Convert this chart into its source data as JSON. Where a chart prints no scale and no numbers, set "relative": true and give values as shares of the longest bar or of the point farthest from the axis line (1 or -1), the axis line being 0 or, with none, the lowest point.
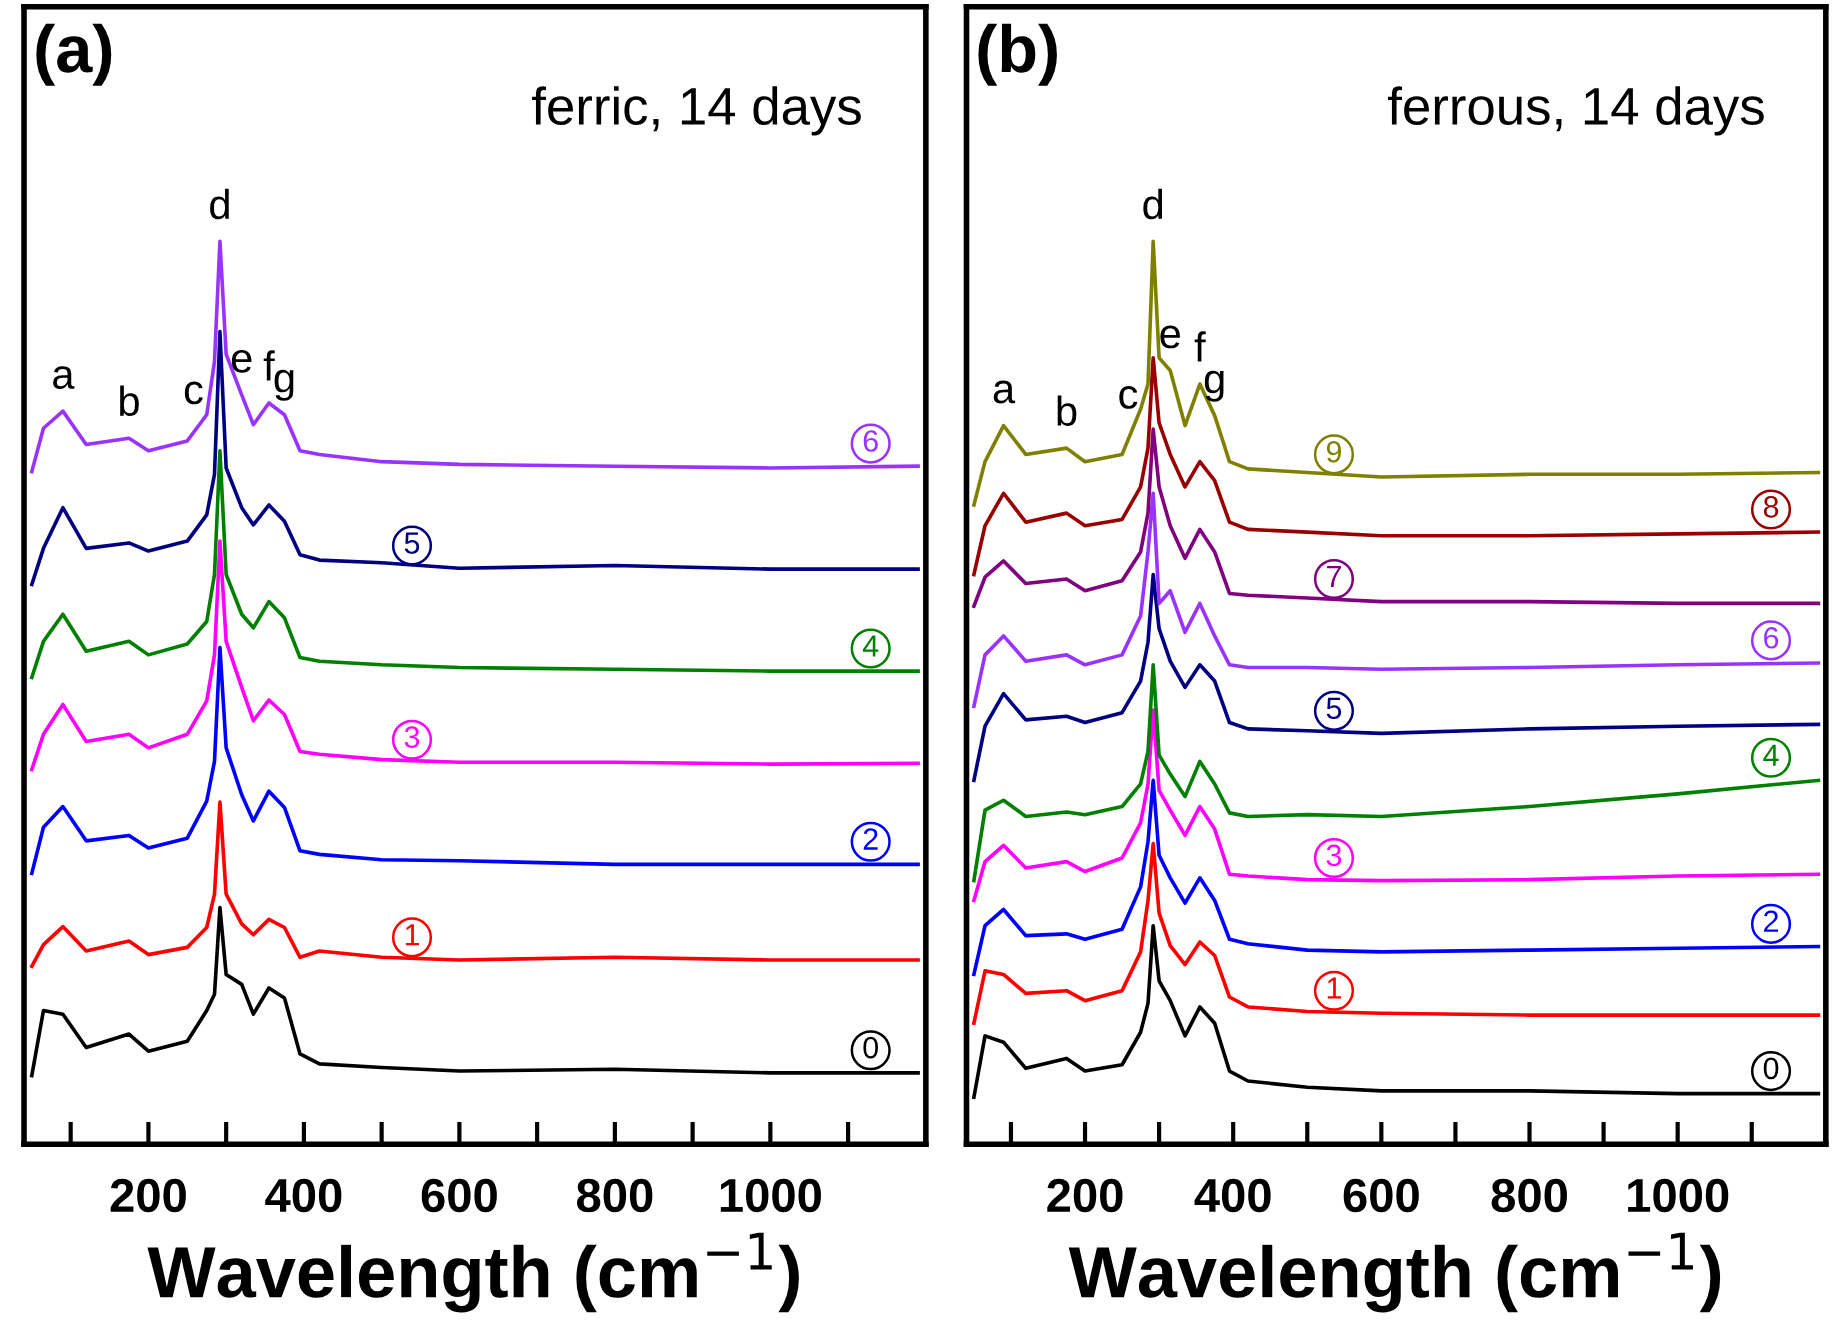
{
  "chart_data": [
    {
      "type": "line",
      "title": "(a)",
      "subtitle": "ferric, 14 days",
      "xlabel": "Wavelength (cm$^{−1}$)",
      "relative": true,
      "legend": false,
      "grid": false,
      "x": [
        50,
        65,
        90,
        120,
        175,
        200,
        250,
        275,
        285,
        292,
        300,
        320,
        335,
        355,
        375,
        395,
        420,
        500,
        600,
        800,
        1000,
        1190
      ],
      "xlim": [
        40,
        1200
      ],
      "xticks": [
        {
          "value": 100,
          "label": null
        },
        200,
        {
          "value": 300,
          "label": null
        },
        400,
        {
          "value": 500,
          "label": null
        },
        600,
        {
          "value": 700,
          "label": null
        },
        800,
        {
          "value": 900,
          "label": null
        },
        1000,
        {
          "value": 1100,
          "label": null
        }
      ],
      "series": [
        {
          "name": "0",
          "color": "#000000",
          "values": [
            0.076,
            0.148,
            0.144,
            0.107,
            0.122,
            0.103,
            0.114,
            0.148,
            0.166,
            0.262,
            0.188,
            0.177,
            0.144,
            0.173,
            0.162,
            0.1,
            0.089,
            0.085,
            0.081,
            0.083,
            0.079,
            0.079
          ]
        },
        {
          "name": "1",
          "color": "#ff0000",
          "values": [
            0.197,
            0.221,
            0.241,
            0.214,
            0.225,
            0.21,
            0.218,
            0.24,
            0.277,
            0.379,
            0.277,
            0.244,
            0.232,
            0.249,
            0.24,
            0.207,
            0.214,
            0.207,
            0.204,
            0.207,
            0.204,
            0.204
          ]
        },
        {
          "name": "2",
          "color": "#0000ff",
          "values": [
            0.3,
            0.351,
            0.374,
            0.336,
            0.342,
            0.328,
            0.339,
            0.38,
            0.424,
            0.55,
            0.439,
            0.387,
            0.358,
            0.391,
            0.373,
            0.325,
            0.321,
            0.315,
            0.314,
            0.31,
            0.31,
            0.31
          ]
        },
        {
          "name": "3",
          "color": "#ff00ff",
          "values": [
            0.415,
            0.454,
            0.487,
            0.446,
            0.454,
            0.439,
            0.454,
            0.491,
            0.542,
            0.668,
            0.557,
            0.506,
            0.469,
            0.492,
            0.476,
            0.435,
            0.432,
            0.426,
            0.423,
            0.423,
            0.421,
            0.422
          ]
        },
        {
          "name": "4",
          "color": "#008000",
          "values": [
            0.517,
            0.557,
            0.587,
            0.546,
            0.557,
            0.542,
            0.554,
            0.579,
            0.631,
            0.768,
            0.631,
            0.587,
            0.572,
            0.601,
            0.583,
            0.539,
            0.535,
            0.531,
            0.528,
            0.526,
            0.524,
            0.524
          ]
        },
        {
          "name": "5",
          "color": "#000080",
          "values": [
            0.62,
            0.66,
            0.705,
            0.66,
            0.666,
            0.657,
            0.668,
            0.697,
            0.742,
            0.9,
            0.749,
            0.705,
            0.686,
            0.708,
            0.69,
            0.653,
            0.647,
            0.644,
            0.638,
            0.641,
            0.637,
            0.637
          ]
        },
        {
          "name": "6",
          "color": "#9933ff",
          "values": [
            0.745,
            0.793,
            0.812,
            0.775,
            0.782,
            0.768,
            0.779,
            0.808,
            0.867,
            1,
            0.875,
            0.83,
            0.797,
            0.821,
            0.808,
            0.768,
            0.764,
            0.756,
            0.753,
            0.751,
            0.749,
            0.751
          ]
        }
      ],
      "annotations": [
        {
          "text": "a",
          "x": 90,
          "y": 0.812
        },
        {
          "text": "b",
          "x": 175,
          "y": 0.782
        },
        {
          "text": "c",
          "x": 258,
          "y": 0.795
        },
        {
          "text": "d",
          "x": 292,
          "y": 1
        },
        {
          "text": "e",
          "x": 320,
          "y": 0.83
        },
        {
          "text": "f",
          "x": 355,
          "y": 0.821
        },
        {
          "text": "g",
          "x": 375,
          "y": 0.808
        }
      ]
    },
    {
      "type": "line",
      "title": "(b)",
      "subtitle": "ferrous, 14 days",
      "xlabel": "Wavelength (cm$^{−1}$)",
      "relative": true,
      "legend": false,
      "grid": false,
      "x": [
        50,
        65,
        90,
        120,
        175,
        200,
        250,
        275,
        285,
        292,
        300,
        315,
        335,
        355,
        375,
        395,
        420,
        500,
        600,
        800,
        1000,
        1190
      ],
      "xlim": [
        40,
        1200
      ],
      "xticks": [
        {
          "value": 100,
          "label": null
        },
        200,
        {
          "value": 300,
          "label": null
        },
        400,
        {
          "value": 500,
          "label": null
        },
        600,
        {
          "value": 700,
          "label": null
        },
        800,
        {
          "value": 900,
          "label": null
        },
        1000,
        {
          "value": 1100,
          "label": null
        }
      ],
      "series": [
        {
          "name": "0",
          "color": "#000000",
          "values": [
            0.052,
            0.12,
            0.113,
            0.084,
            0.095,
            0.081,
            0.088,
            0.124,
            0.156,
            0.242,
            0.181,
            0.159,
            0.12,
            0.152,
            0.134,
            0.081,
            0.07,
            0.063,
            0.059,
            0.059,
            0.056,
            0.056
          ]
        },
        {
          "name": "1",
          "color": "#ff0000",
          "values": [
            0.134,
            0.192,
            0.188,
            0.167,
            0.17,
            0.159,
            0.17,
            0.213,
            0.27,
            0.333,
            0.256,
            0.22,
            0.199,
            0.224,
            0.209,
            0.163,
            0.152,
            0.147,
            0.145,
            0.143,
            0.143,
            0.143
          ]
        },
        {
          "name": "2",
          "color": "#0000ff",
          "values": [
            0.188,
            0.242,
            0.26,
            0.231,
            0.233,
            0.227,
            0.238,
            0.285,
            0.335,
            0.403,
            0.32,
            0.295,
            0.267,
            0.295,
            0.27,
            0.227,
            0.222,
            0.215,
            0.213,
            0.215,
            0.217,
            0.219
          ]
        },
        {
          "name": "3",
          "color": "#ff00ff",
          "values": [
            0.27,
            0.313,
            0.331,
            0.306,
            0.313,
            0.302,
            0.317,
            0.356,
            0.399,
            0.481,
            0.392,
            0.37,
            0.342,
            0.374,
            0.349,
            0.299,
            0.297,
            0.293,
            0.292,
            0.293,
            0.297,
            0.299
          ]
        },
        {
          "name": "4",
          "color": "#008000",
          "values": [
            0.292,
            0.37,
            0.381,
            0.363,
            0.368,
            0.365,
            0.374,
            0.399,
            0.435,
            0.531,
            0.431,
            0.41,
            0.385,
            0.424,
            0.399,
            0.367,
            0.363,
            0.365,
            0.363,
            0.374,
            0.388,
            0.403
          ]
        },
        {
          "name": "5",
          "color": "#000080",
          "values": [
            0.403,
            0.463,
            0.499,
            0.47,
            0.474,
            0.467,
            0.478,
            0.513,
            0.556,
            0.631,
            0.571,
            0.535,
            0.506,
            0.531,
            0.513,
            0.467,
            0.46,
            0.458,
            0.455,
            0.46,
            0.463,
            0.465
          ]
        },
        {
          "name": "6",
          "color": "#9933ff",
          "values": [
            0.485,
            0.542,
            0.563,
            0.535,
            0.542,
            0.531,
            0.542,
            0.585,
            0.656,
            0.721,
            0.599,
            0.613,
            0.567,
            0.599,
            0.563,
            0.531,
            0.528,
            0.528,
            0.526,
            0.528,
            0.531,
            0.533
          ]
        },
        {
          "name": "7",
          "color": "#800080",
          "values": [
            0.596,
            0.628,
            0.646,
            0.621,
            0.626,
            0.613,
            0.624,
            0.656,
            0.699,
            0.792,
            0.728,
            0.685,
            0.649,
            0.681,
            0.656,
            0.61,
            0.608,
            0.605,
            0.601,
            0.601,
            0.599,
            0.599
          ]
        },
        {
          "name": "8",
          "color": "#990000",
          "values": [
            0.631,
            0.685,
            0.721,
            0.689,
            0.699,
            0.685,
            0.692,
            0.728,
            0.771,
            0.871,
            0.799,
            0.764,
            0.728,
            0.756,
            0.735,
            0.689,
            0.681,
            0.678,
            0.674,
            0.674,
            0.676,
            0.678
          ]
        },
        {
          "name": "9",
          "color": "#808000",
          "values": [
            0.708,
            0.756,
            0.796,
            0.764,
            0.771,
            0.756,
            0.764,
            0.814,
            0.842,
            1,
            0.871,
            0.857,
            0.796,
            0.842,
            0.807,
            0.756,
            0.748,
            0.744,
            0.739,
            0.742,
            0.742,
            0.744
          ]
        }
      ],
      "annotations": [
        {
          "text": "a",
          "x": 90,
          "y": 0.796
        },
        {
          "text": "b",
          "x": 175,
          "y": 0.771
        },
        {
          "text": "c",
          "x": 258,
          "y": 0.79
        },
        {
          "text": "d",
          "x": 292,
          "y": 1
        },
        {
          "text": "e",
          "x": 315,
          "y": 0.857
        },
        {
          "text": "f",
          "x": 355,
          "y": 0.842
        },
        {
          "text": "g",
          "x": 375,
          "y": 0.807
        }
      ]
    }
  ]
}
